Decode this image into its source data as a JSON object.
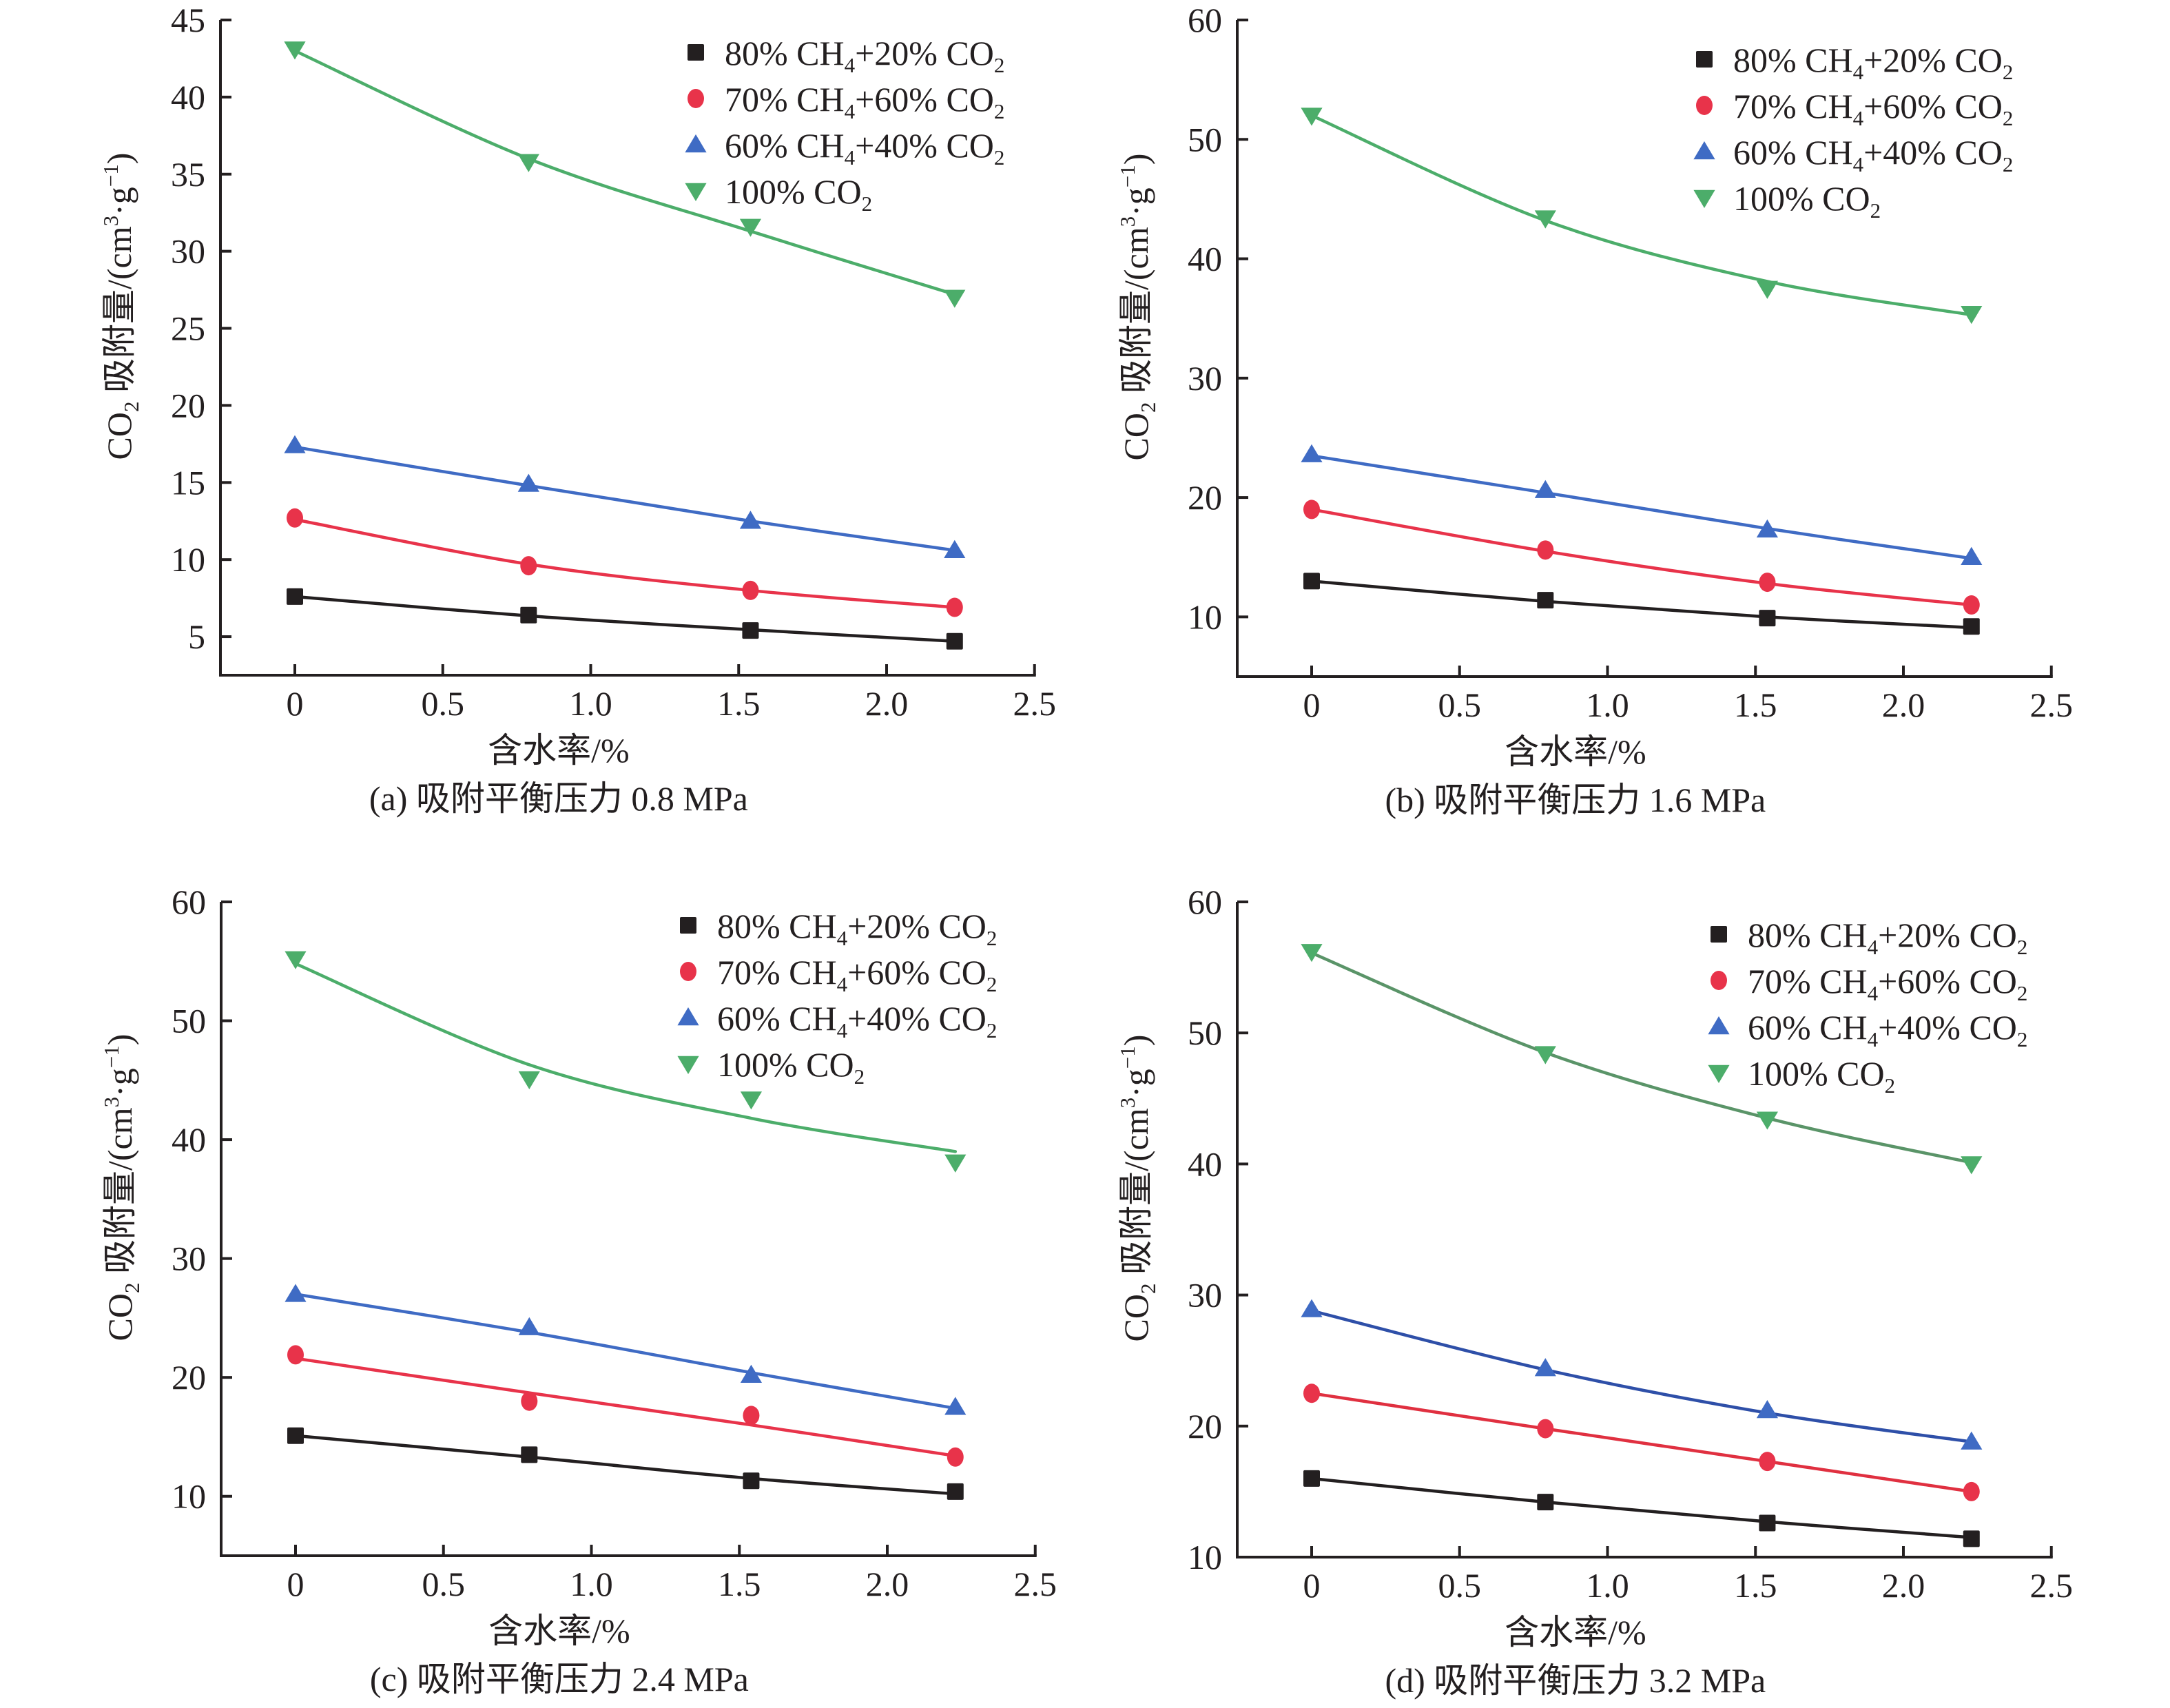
{
  "figure": {
    "series_styles": [
      {
        "key": "s80",
        "marker": "square",
        "color": "#231f20"
      },
      {
        "key": "s70",
        "marker": "circle",
        "color": "#e8334a"
      },
      {
        "key": "s60",
        "marker": "triangle-up",
        "color": "#3f6bc4"
      },
      {
        "key": "s100",
        "marker": "triangle-down",
        "color": "#4cad6a"
      }
    ],
    "legend_entries": [
      {
        "parts": [
          {
            "t": "80% CH"
          },
          {
            "t": "4",
            "sub": true
          },
          {
            "t": "+20% CO"
          },
          {
            "t": "2",
            "sub": true
          }
        ]
      },
      {
        "parts": [
          {
            "t": "70% CH"
          },
          {
            "t": "4",
            "sub": true
          },
          {
            "t": "+60% CO"
          },
          {
            "t": "2",
            "sub": true
          }
        ]
      },
      {
        "parts": [
          {
            "t": "60% CH"
          },
          {
            "t": "4",
            "sub": true
          },
          {
            "t": "+40% CO"
          },
          {
            "t": "2",
            "sub": true
          }
        ]
      },
      {
        "parts": [
          {
            "t": "100% CO"
          },
          {
            "t": "2",
            "sub": true
          }
        ]
      }
    ],
    "xlabel": "含水率/%",
    "ylabel_parts": [
      {
        "t": "CO"
      },
      {
        "t": "2",
        "sub": true
      },
      {
        "t": " 吸附量/(cm"
      },
      {
        "t": "3",
        "sup": true
      },
      {
        "t": "·g"
      },
      {
        "t": "−1",
        "sup": true
      },
      {
        "t": ")"
      }
    ]
  },
  "chart_data": [
    {
      "type": "line",
      "panel": "a",
      "title": "(a) 吸附平衡压力 0.8 MPa",
      "xlabel": "含水率/%",
      "ylabel": "CO2 吸附量/(cm3·g-1)",
      "xlim": [
        -0.25,
        2.5
      ],
      "ylim": [
        2.5,
        45
      ],
      "xticks": [
        0,
        0.5,
        1.0,
        1.5,
        2.0,
        2.5
      ],
      "xtick_labels": [
        "0",
        "0.5",
        "1.0",
        "1.5",
        "2.0",
        "2.5"
      ],
      "yticks": [
        5,
        10,
        15,
        20,
        25,
        30,
        35,
        40,
        45
      ],
      "ytick_labels": [
        "5",
        "10",
        "15",
        "20",
        "25",
        "30",
        "35",
        "40",
        "45"
      ],
      "legend": "top-right",
      "grid": false,
      "x": [
        0,
        0.79,
        1.54,
        2.23
      ],
      "series": [
        {
          "name": "80% CH4+20% CO2",
          "values": [
            7.6,
            6.4,
            5.4,
            4.7
          ],
          "fit": [
            7.6,
            6.35,
            5.45,
            4.7
          ]
        },
        {
          "name": "70% CH4+60% CO2",
          "values": [
            12.7,
            9.6,
            8.0,
            6.9
          ],
          "fit": [
            12.6,
            9.7,
            8.0,
            6.9
          ]
        },
        {
          "name": "60% CH4+40% CO2",
          "values": [
            17.4,
            14.9,
            12.5,
            10.6
          ],
          "fit": [
            17.3,
            14.8,
            12.5,
            10.6
          ]
        },
        {
          "name": "100% CO2",
          "values": [
            43.1,
            35.8,
            31.6,
            27.0
          ],
          "fit": [
            43.0,
            36.0,
            31.3,
            27.2
          ]
        }
      ]
    },
    {
      "type": "line",
      "panel": "b",
      "title": "(b) 吸附平衡压力 1.6 MPa",
      "xlabel": "含水率/%",
      "ylabel": "CO2 吸附量/(cm3·g-1)",
      "xlim": [
        -0.25,
        2.5
      ],
      "ylim": [
        5,
        60
      ],
      "xticks": [
        0,
        0.5,
        1.0,
        1.5,
        2.0,
        2.5
      ],
      "xtick_labels": [
        "0",
        "0.5",
        "1.0",
        "1.5",
        "2.0",
        "2.5"
      ],
      "yticks": [
        10,
        20,
        30,
        40,
        50,
        60
      ],
      "ytick_labels": [
        "10",
        "20",
        "30",
        "40",
        "50",
        "60"
      ],
      "legend": "top-right",
      "grid": false,
      "x": [
        0,
        0.79,
        1.54,
        2.23
      ],
      "series": [
        {
          "name": "80% CH4+20% CO2",
          "values": [
            13.0,
            11.4,
            9.9,
            9.2
          ],
          "fit": [
            13.0,
            11.3,
            10.0,
            9.1
          ]
        },
        {
          "name": "70% CH4+60% CO2",
          "values": [
            19.0,
            15.6,
            12.9,
            11.0
          ],
          "fit": [
            19.0,
            15.5,
            12.8,
            11.0
          ]
        },
        {
          "name": "60% CH4+40% CO2",
          "values": [
            23.6,
            20.6,
            17.3,
            15.0
          ],
          "fit": [
            23.5,
            20.4,
            17.4,
            14.9
          ]
        },
        {
          "name": "100% CO2",
          "values": [
            52.0,
            43.4,
            37.5,
            35.4
          ],
          "fit": [
            52.0,
            43.2,
            38.1,
            35.3
          ]
        }
      ]
    },
    {
      "type": "line",
      "panel": "c",
      "title": "(c) 吸附平衡压力 2.4 MPa",
      "xlabel": "含水率/%",
      "ylabel": "CO2 吸附量/(cm3·g-1)",
      "xlim": [
        -0.25,
        2.5
      ],
      "ylim": [
        5,
        60
      ],
      "xticks": [
        0,
        0.5,
        1.0,
        1.5,
        2.0,
        2.5
      ],
      "xtick_labels": [
        "0",
        "0.5",
        "1.0",
        "1.5",
        "2.0",
        "2.5"
      ],
      "yticks": [
        10,
        20,
        30,
        40,
        50,
        60
      ],
      "ytick_labels": [
        "10",
        "20",
        "30",
        "40",
        "50",
        "60"
      ],
      "legend": "top-right",
      "grid": false,
      "x": [
        0,
        0.79,
        1.54,
        2.23
      ],
      "series": [
        {
          "name": "80% CH4+20% CO2",
          "values": [
            15.1,
            13.5,
            11.3,
            10.4
          ],
          "fit": [
            15.1,
            13.3,
            11.5,
            10.2
          ]
        },
        {
          "name": "70% CH4+60% CO2",
          "values": [
            21.9,
            18.0,
            16.8,
            13.3
          ],
          "fit": [
            21.6,
            18.7,
            16.0,
            13.4
          ]
        },
        {
          "name": "60% CH4+40% CO2",
          "values": [
            27.0,
            24.2,
            20.2,
            17.5
          ],
          "fit": [
            27.0,
            23.8,
            20.4,
            17.4
          ]
        },
        {
          "name": "100% CO2",
          "values": [
            55.2,
            45.1,
            43.4,
            38.1
          ],
          "fit": [
            54.8,
            46.3,
            41.8,
            39.0
          ]
        }
      ]
    },
    {
      "type": "line",
      "panel": "d",
      "title": "(d) 吸附平衡压力 3.2 MPa",
      "xlabel": "含水率/%",
      "ylabel": "CO2 吸附量/(cm3·g-1)",
      "xlim": [
        -0.25,
        2.5
      ],
      "ylim": [
        10,
        60
      ],
      "xticks": [
        0,
        0.5,
        1.0,
        1.5,
        2.0,
        2.5
      ],
      "xtick_labels": [
        "0",
        "0.5",
        "1.0",
        "1.5",
        "2.0",
        "2.5"
      ],
      "yticks": [
        10,
        20,
        30,
        40,
        50,
        60
      ],
      "ytick_labels": [
        "10",
        "20",
        "30",
        "40",
        "50",
        "60"
      ],
      "legend": "top-right",
      "grid": false,
      "x": [
        0,
        0.79,
        1.54,
        2.23
      ],
      "series": [
        {
          "name": "80% CH4+20% CO2",
          "values": [
            16.0,
            14.2,
            12.6,
            11.4
          ],
          "fit": [
            16.0,
            14.2,
            12.7,
            11.5
          ]
        },
        {
          "name": "70% CH4+60% CO2",
          "values": [
            22.5,
            19.8,
            17.3,
            15.0
          ],
          "fit": [
            22.5,
            19.8,
            17.3,
            15.0
          ]
        },
        {
          "name": "60% CH4+40% CO2",
          "values": [
            28.9,
            24.4,
            21.2,
            18.8
          ],
          "fit": [
            28.8,
            24.3,
            21.0,
            18.8
          ]
        },
        {
          "name": "100% CO2",
          "values": [
            56.2,
            48.4,
            43.4,
            40.0
          ],
          "fit": [
            56.1,
            48.5,
            43.5,
            40.1
          ]
        }
      ]
    }
  ]
}
